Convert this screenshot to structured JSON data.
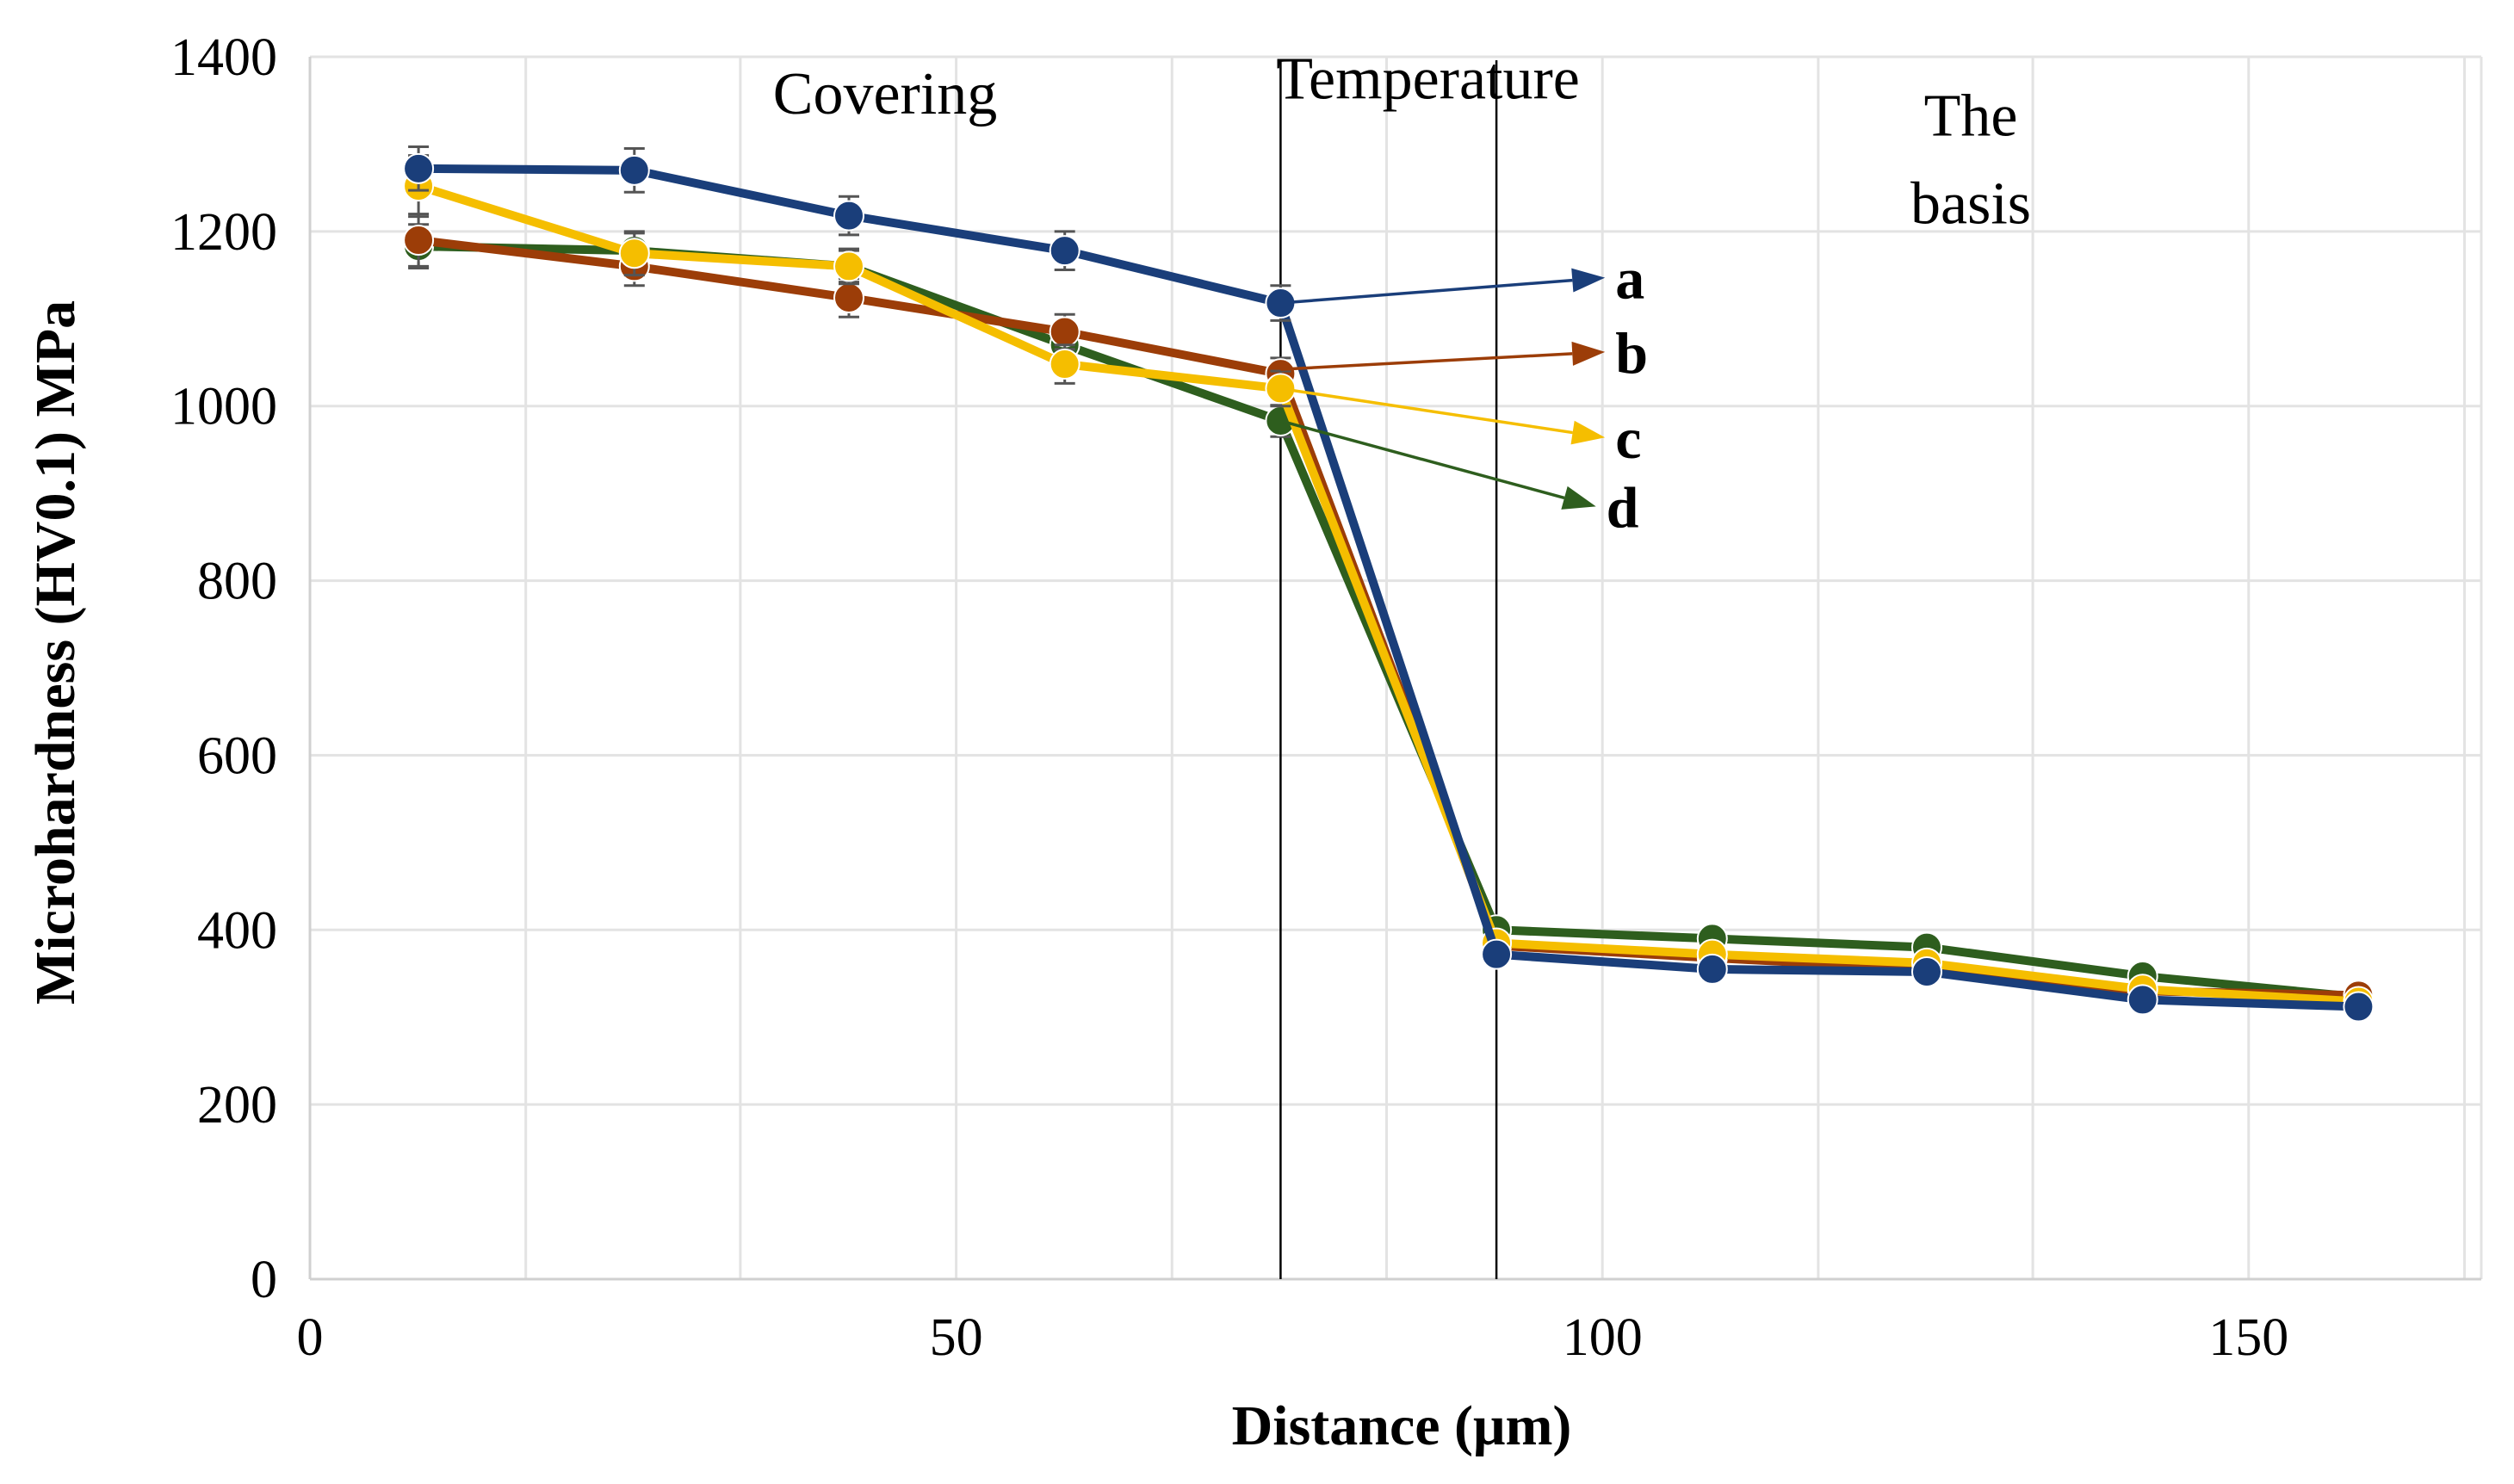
{
  "chart_data": {
    "type": "line",
    "title": "",
    "xlabel": "Distance (μm)",
    "ylabel": "Microhardness (HV0.1) MPa",
    "xlim": [
      0,
      168
    ],
    "ylim": [
      0,
      1400
    ],
    "xticks": [
      0,
      50,
      100,
      150
    ],
    "yticks": [
      0,
      200,
      400,
      600,
      800,
      1000,
      1200,
      1400
    ],
    "x_minor_grid": [
      0,
      16.7,
      33.3,
      50,
      66.7,
      83.3,
      100,
      116.7,
      133.3,
      150,
      166.7
    ],
    "grid": true,
    "x": [
      8.4,
      25.1,
      41.7,
      58.4,
      75.1,
      91.8,
      108.5,
      125.1,
      141.8,
      158.5
    ],
    "series": [
      {
        "name": "d",
        "color": "#2e5e1e",
        "values": [
          1183,
          1178,
          1160,
          1070,
          983,
          400,
          390,
          380,
          347,
          323
        ],
        "errors": [
          25,
          20,
          18,
          18,
          18,
          10,
          10,
          10,
          10,
          8
        ]
      },
      {
        "name": "b",
        "color": "#9c3d08",
        "values": [
          1190,
          1160,
          1124,
          1085,
          1037,
          382,
          368,
          355,
          330,
          325
        ],
        "errors": [
          30,
          22,
          22,
          20,
          18,
          10,
          10,
          10,
          10,
          8
        ]
      },
      {
        "name": "c",
        "color": "#f5be00",
        "values": [
          1252,
          1175,
          1160,
          1048,
          1020,
          385,
          372,
          362,
          332,
          318
        ],
        "errors": [
          35,
          25,
          20,
          22,
          20,
          10,
          10,
          10,
          10,
          8
        ]
      },
      {
        "name": "a",
        "color": "#1a3e7a",
        "values": [
          1272,
          1270,
          1218,
          1178,
          1118,
          372,
          355,
          352,
          320,
          312
        ],
        "errors": [
          25,
          25,
          22,
          22,
          20,
          10,
          10,
          10,
          10,
          8
        ]
      }
    ],
    "region_dividers_x": [
      75.1,
      91.8
    ],
    "region_labels": [
      {
        "lines": [
          "Covering"
        ],
        "x": 44.5,
        "y": 1335
      },
      {
        "lines": [
          "Temperature"
        ],
        "x": 86.5,
        "y": 1352
      },
      {
        "lines": [
          "The",
          "basis"
        ],
        "x": 128.5,
        "y": 1310
      }
    ],
    "annotations": [
      {
        "label": "a",
        "from_x": 75.1,
        "from_y": 1118,
        "to_x": 100.2,
        "to_y": 1147
      },
      {
        "label": "b",
        "from_x": 75.1,
        "from_y": 1042,
        "to_x": 100.2,
        "to_y": 1062
      },
      {
        "label": "c",
        "from_x": 75.1,
        "from_y": 1020,
        "to_x": 100.2,
        "to_y": 964
      },
      {
        "label": "d",
        "from_x": 75.1,
        "from_y": 983,
        "to_x": 99.5,
        "to_y": 885
      }
    ]
  }
}
